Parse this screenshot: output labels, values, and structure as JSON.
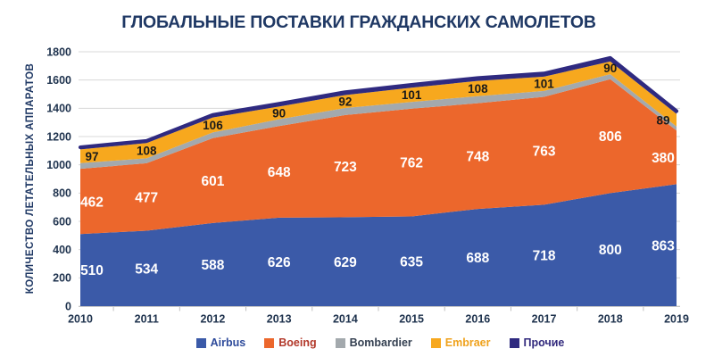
{
  "title": "ГЛОБАЛЬНЫЕ ПОСТАВКИ ГРАЖДАНСКИХ САМОЛЕТОВ",
  "colors": {
    "title": "#1F3864",
    "axis_text": "#20344F",
    "axis_title": "#1F3864",
    "gridline": "#D8D8D8",
    "axis_line": "#C6C6C6",
    "tick_mark": "#BFBFBF",
    "background": "#FFFFFF"
  },
  "chart_data": {
    "type": "area",
    "stacked": true,
    "title": "ГЛОБАЛЬНЫЕ ПОСТАВКИ ГРАЖДАНСКИХ САМОЛЕТОВ",
    "xlabel": "",
    "ylabel": "КОЛИЧЕСТВО ЛЕТАТЕЛЬНЫХ АППАРАТОВ",
    "ylim": [
      0,
      1800
    ],
    "ytick_step": 200,
    "grid": true,
    "legend_position": "bottom",
    "categories": [
      "2010",
      "2011",
      "2012",
      "2013",
      "2014",
      "2015",
      "2016",
      "2017",
      "2018",
      "2019"
    ],
    "series": [
      {
        "name": "Airbus",
        "slug": "airbus",
        "color": "#3B5AA8",
        "legend_text_color": "#2E4B9B",
        "values": [
          510,
          534,
          588,
          626,
          629,
          635,
          688,
          718,
          800,
          863
        ],
        "labels_shown": true,
        "label_color": "#FFFFFF"
      },
      {
        "name": "Boeing",
        "slug": "boeing",
        "color": "#EC672C",
        "legend_text_color": "#B2382A",
        "values": [
          462,
          477,
          601,
          648,
          723,
          762,
          748,
          763,
          806,
          380
        ],
        "labels_shown": true,
        "label_color": "#FFFFFF"
      },
      {
        "name": "Bombardier",
        "slug": "bombardier",
        "color": "#A3A9AD",
        "legend_text_color": "#333F50",
        "values": [
          40,
          35,
          40,
          48,
          50,
          48,
          50,
          42,
          35,
          28
        ],
        "values_estimated": true,
        "labels_shown": false,
        "label_color": "#1A1A1A"
      },
      {
        "name": "Embraer",
        "slug": "embraer",
        "color": "#F7A81E",
        "legend_text_color": "#EFA21D",
        "values": [
          97,
          108,
          106,
          90,
          92,
          101,
          108,
          101,
          90,
          89
        ],
        "labels_shown": true,
        "label_color": "#1A1A1A"
      },
      {
        "name": "Прочие",
        "slug": "prochie",
        "color": "#2F2A80",
        "legend_text_color": "#322A7D",
        "values": [
          15,
          15,
          18,
          20,
          20,
          20,
          20,
          22,
          25,
          20
        ],
        "values_estimated": true,
        "labels_shown": false,
        "label_color": "#1A1A1A"
      }
    ]
  }
}
